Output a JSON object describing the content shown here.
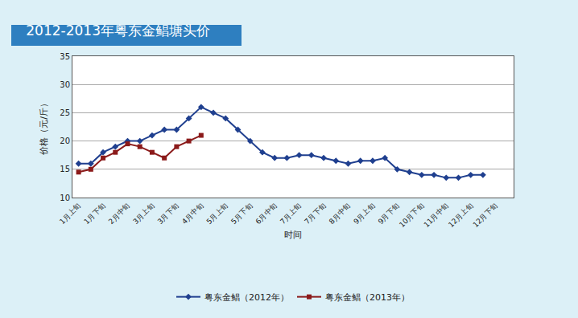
{
  "chart_data": {
    "type": "line",
    "title": "2012-2013年粤东金鲳塘头价",
    "x_label": "时间",
    "y_label": "价格（元/斤）",
    "categories": [
      "1月上旬",
      null,
      "1月下旬",
      null,
      "2月中旬",
      null,
      "3月上旬",
      null,
      "3月下旬",
      null,
      "4月中旬",
      null,
      "5月上旬",
      null,
      "5月下旬",
      null,
      "6月中旬",
      null,
      "7月上旬",
      null,
      "7月下旬",
      null,
      "8月中旬",
      null,
      "9月上旬",
      null,
      "9月下旬",
      null,
      "10月下旬",
      null,
      "11月中旬",
      null,
      "12月上旬",
      null,
      "12月下旬",
      null
    ],
    "series": [
      {
        "name": "粤东金鲳（2012年）",
        "color": "#1f3f8f",
        "marker": "diamond",
        "line_style": "solid",
        "values": [
          16,
          16,
          18,
          19,
          20,
          20,
          21,
          22,
          22,
          24,
          26,
          25,
          24,
          22,
          20,
          18,
          17,
          17,
          17.5,
          17.5,
          17,
          16.5,
          16,
          16.5,
          16.5,
          17,
          15,
          14.5,
          14,
          14,
          13.5,
          13.5,
          14,
          14,
          null,
          null
        ]
      },
      {
        "name": "粤东金鲳（2013年）",
        "color": "#8b1a1a",
        "marker": "square",
        "line_style": "solid",
        "values": [
          14.5,
          15,
          17,
          18,
          19.5,
          19,
          18,
          17,
          19,
          20,
          21,
          null,
          null,
          null,
          null,
          null,
          null,
          null,
          null,
          null,
          null,
          null,
          null,
          null,
          null,
          null,
          null,
          null,
          null,
          null,
          null,
          null,
          null,
          null,
          null,
          null
        ]
      }
    ],
    "ylim": [
      10,
      35
    ],
    "yticks": [
      10,
      15,
      20,
      25,
      30,
      35
    ],
    "grid": true,
    "legend": "bottom"
  }
}
